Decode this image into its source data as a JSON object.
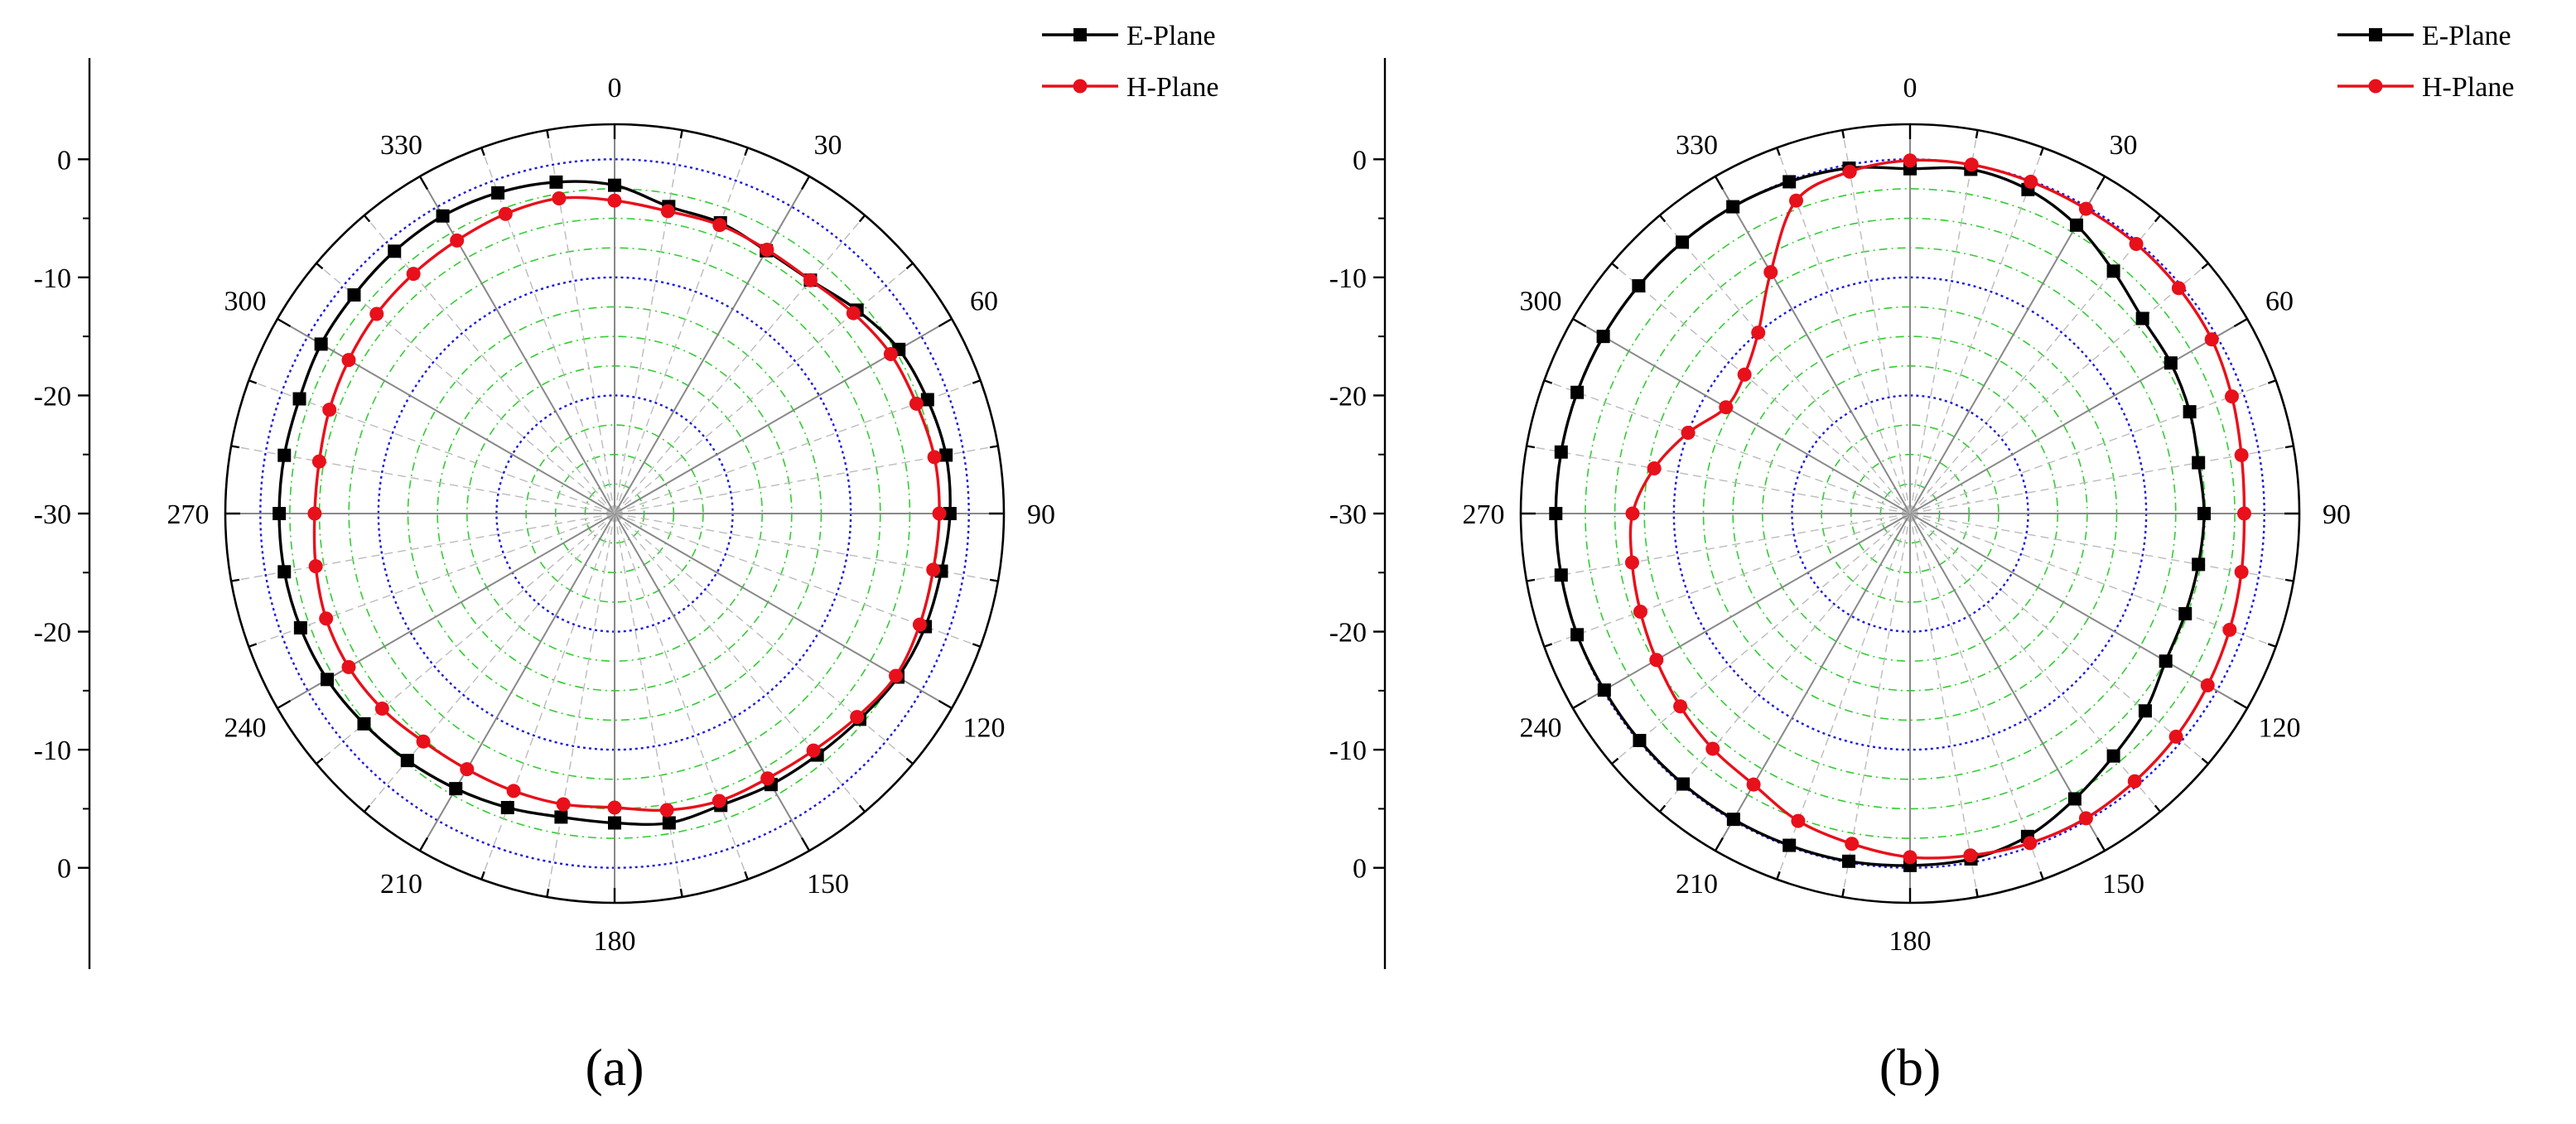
{
  "chart_data": [
    {
      "type": "polar",
      "panel_label": "(a)",
      "angle_ticks": [
        "0",
        "30",
        "60",
        "90",
        "120",
        "150",
        "180",
        "210",
        "240",
        "270",
        "300",
        "330"
      ],
      "radial_tick_labels": [
        "-30",
        "-20",
        "-10",
        "0"
      ],
      "r_range": [
        -30,
        0
      ],
      "series": [
        {
          "name": "E-Plane",
          "color": "#000000",
          "marker": "square",
          "angles": [
            0,
            10,
            20,
            30,
            40,
            50,
            60,
            70,
            80,
            90,
            100,
            110,
            120,
            130,
            140,
            150,
            160,
            170,
            180,
            190,
            200,
            210,
            220,
            230,
            240,
            250,
            260,
            270,
            280,
            290,
            300,
            310,
            320,
            330,
            340,
            350
          ],
          "values": [
            -2.2,
            -3.6,
            -3.8,
            -4.3,
            -4.2,
            -3.2,
            -2.2,
            -1.8,
            -1.5,
            -1.6,
            -1.9,
            -2.0,
            -2.3,
            -2.9,
            -3.3,
            -3.5,
            -3.7,
            -3.4,
            -3.8,
            -3.9,
            -3.5,
            -3.1,
            -2.7,
            -2.3,
            -1.9,
            -1.7,
            -1.6,
            -1.6,
            -1.6,
            -1.6,
            -1.3,
            -1.2,
            -1.0,
            -0.9,
            -1.1,
            -1.5
          ]
        },
        {
          "name": "H-Plane",
          "color": "#e8101a",
          "marker": "circle",
          "angles": [
            0,
            10,
            20,
            30,
            40,
            50,
            60,
            70,
            80,
            90,
            100,
            110,
            120,
            130,
            140,
            150,
            160,
            170,
            180,
            190,
            200,
            210,
            220,
            230,
            240,
            250,
            260,
            270,
            280,
            290,
            300,
            310,
            320,
            330,
            340,
            350
          ],
          "values": [
            -3.5,
            -4.0,
            -4.0,
            -4.2,
            -4.2,
            -3.6,
            -3.0,
            -2.8,
            -2.5,
            -2.5,
            -2.6,
            -2.5,
            -2.5,
            -3.2,
            -3.8,
            -4.1,
            -4.1,
            -4.5,
            -5.1,
            -5.0,
            -5.0,
            -5.0,
            -4.8,
            -4.3,
            -4.0,
            -4.0,
            -4.3,
            -4.6,
            -4.6,
            -4.3,
            -4.0,
            -3.7,
            -3.5,
            -3.3,
            -3.0,
            -2.9
          ]
        }
      ]
    },
    {
      "type": "polar",
      "panel_label": "(b)",
      "angle_ticks": [
        "0",
        "30",
        "60",
        "90",
        "120",
        "150",
        "180",
        "210",
        "240",
        "270",
        "300",
        "330"
      ],
      "radial_tick_labels": [
        "-30",
        "-20",
        "-10",
        "0"
      ],
      "r_range": [
        -30,
        0
      ],
      "series": [
        {
          "name": "E-Plane",
          "color": "#000000",
          "marker": "square",
          "angles": [
            0,
            10,
            20,
            30,
            40,
            50,
            60,
            70,
            80,
            90,
            100,
            110,
            120,
            130,
            140,
            150,
            160,
            170,
            180,
            190,
            200,
            210,
            220,
            230,
            240,
            250,
            260,
            270,
            280,
            290,
            300,
            310,
            320,
            330,
            340,
            350
          ],
          "values": [
            -0.8,
            -0.4,
            -0.8,
            -1.8,
            -3.2,
            -4.3,
            -4.5,
            -4.8,
            -5.2,
            -5.1,
            -5.2,
            -5.2,
            -5.0,
            -4.0,
            -3.2,
            -2.1,
            -0.9,
            -0.3,
            -0.2,
            -0.1,
            -0.1,
            -0.1,
            -0.1,
            -0.1,
            -0.1,
            0.0,
            0.0,
            0.0,
            0.0,
            0.0,
            0.0,
            0.0,
            0.0,
            0.0,
            -0.1,
            -0.3
          ]
        },
        {
          "name": "H-Plane",
          "color": "#e8101a",
          "marker": "circle",
          "angles": [
            0,
            10,
            20,
            30,
            40,
            50,
            60,
            70,
            80,
            90,
            100,
            110,
            120,
            130,
            140,
            150,
            160,
            170,
            180,
            190,
            200,
            210,
            220,
            230,
            240,
            250,
            260,
            270,
            280,
            290,
            300,
            310,
            320,
            330,
            340,
            350
          ],
          "values": [
            -0.1,
            0.0,
            -0.1,
            -0.2,
            -0.2,
            -0.3,
            -0.5,
            -1.0,
            -1.5,
            -1.7,
            -1.5,
            -1.2,
            -0.9,
            -0.6,
            -0.4,
            -0.2,
            -0.3,
            -0.6,
            -0.9,
            -1.6,
            -2.3,
            -3.5,
            -4.0,
            -4.6,
            -5.2,
            -5.7,
            -6.1,
            -6.5,
            -8.0,
            -10.0,
            -12.0,
            -11.7,
            -10.0,
            -6.4,
            -1.8,
            -0.6
          ]
        }
      ]
    }
  ]
}
